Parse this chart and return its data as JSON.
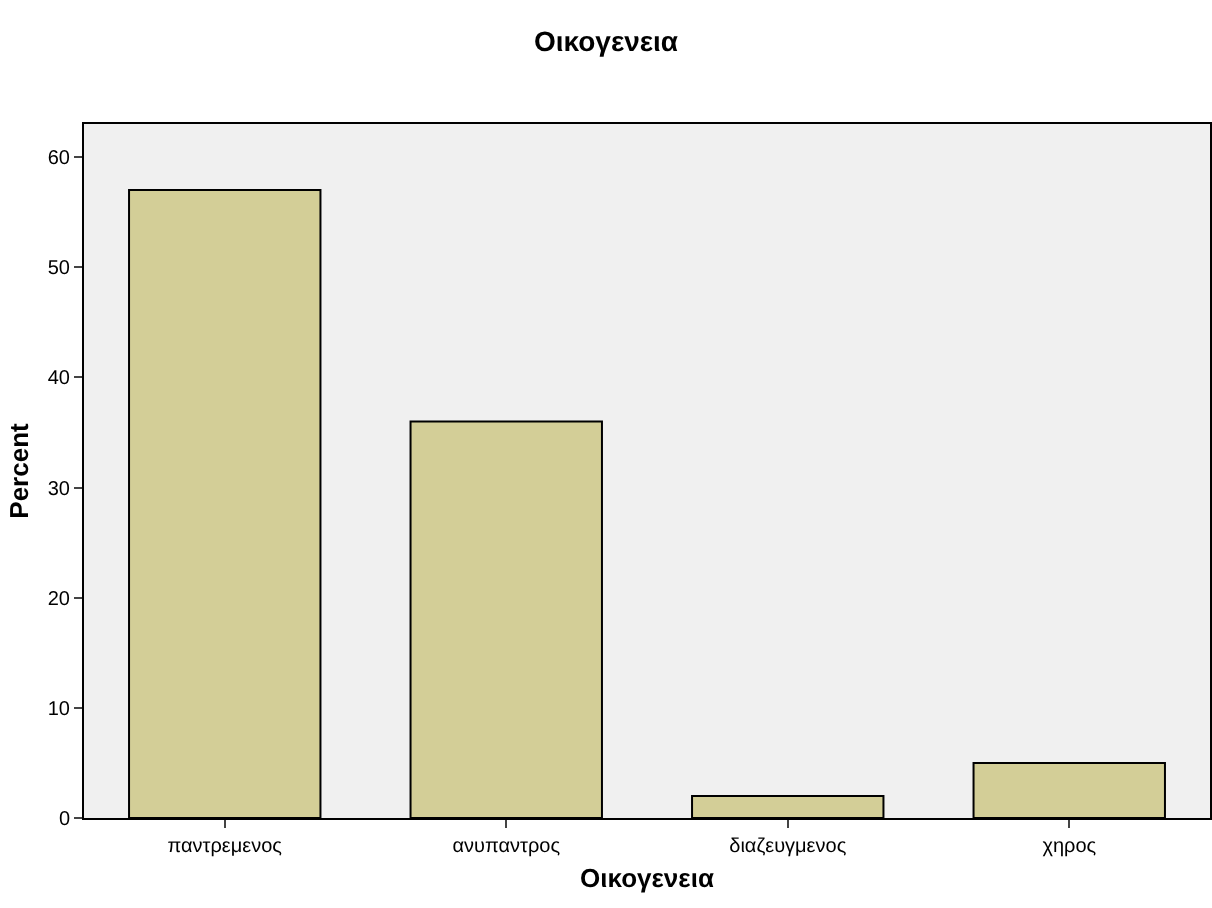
{
  "chart_data": {
    "type": "bar",
    "title": "Οικογενεια",
    "xlabel": "Οικογενεια",
    "ylabel": "Percent",
    "categories": [
      "παντρεμενος",
      "ανυπαντρος",
      "διαζευγμενος",
      "χηρος"
    ],
    "values": [
      57,
      36,
      2,
      5
    ],
    "color": "#d3ce97",
    "ylim": [
      0,
      63
    ],
    "yticks": [
      0,
      10,
      20,
      30,
      40,
      50,
      60
    ],
    "grid": false
  }
}
